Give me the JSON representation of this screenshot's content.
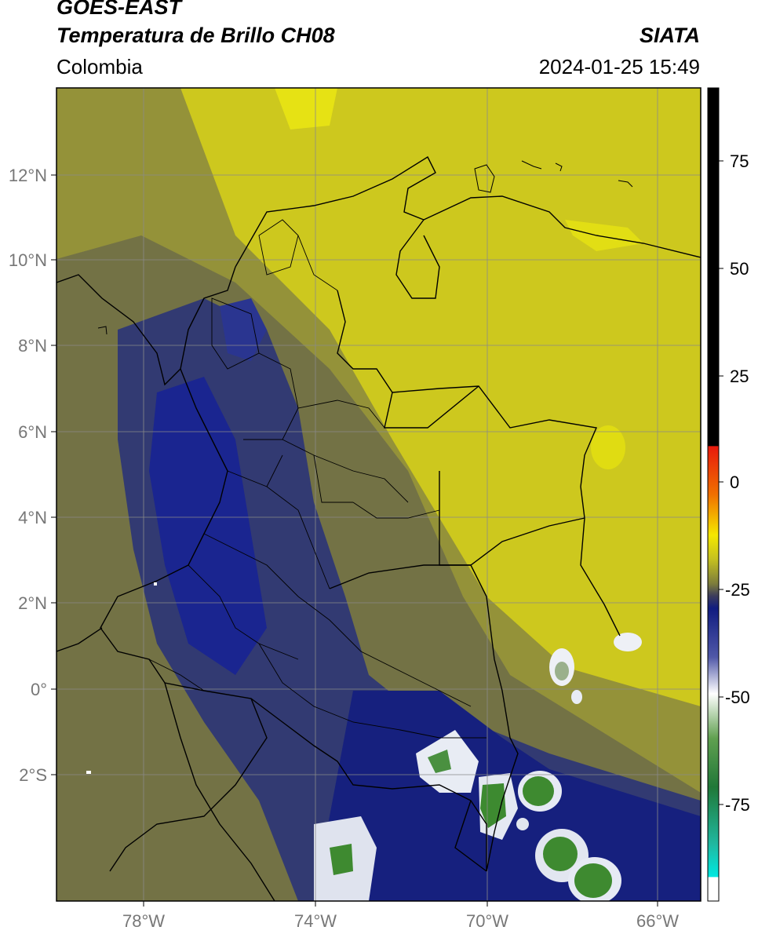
{
  "header": {
    "satellite": "GOES-EAST",
    "product": "Temperatura de Brillo CH08",
    "region": "Colombia",
    "source": "SIATA",
    "datetime": "2024-01-25 15:49"
  },
  "map": {
    "lon_labels": [
      "78°W",
      "74°W",
      "70°W",
      "66°W"
    ],
    "lat_labels": [
      "12°N",
      "10°N",
      "8°N",
      "6°N",
      "4°N",
      "2°N",
      "0°",
      "2°S"
    ],
    "grid": true
  },
  "colorbar": {
    "ticks": [
      "75",
      "50",
      "25",
      "0",
      "-25",
      "-50",
      "-75"
    ]
  },
  "colors": {
    "yellow": "#d2cc1c",
    "olive": "#8a8a3c",
    "navy": "#1c2a80",
    "white_cloud": "#eef0f6",
    "green_cloud": "#3e8a30"
  }
}
